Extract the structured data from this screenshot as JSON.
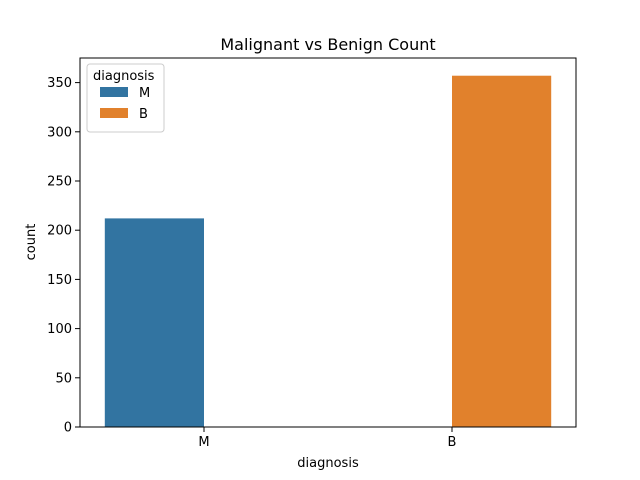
{
  "chart_data": {
    "type": "bar",
    "title": "Malignant vs Benign Count",
    "xlabel": "diagnosis",
    "ylabel": "count",
    "categories": [
      "M",
      "B"
    ],
    "series": [
      {
        "name": "M",
        "color": "#3274a1",
        "values": [
          212,
          0
        ]
      },
      {
        "name": "B",
        "color": "#e1812c",
        "values": [
          0,
          357
        ]
      }
    ],
    "ylim": [
      0,
      375
    ],
    "yticks": [
      0,
      50,
      100,
      150,
      200,
      250,
      300,
      350
    ],
    "grid": false,
    "legend": {
      "title": "diagnosis",
      "placement": "upper-left",
      "entries": [
        "M",
        "B"
      ]
    }
  }
}
